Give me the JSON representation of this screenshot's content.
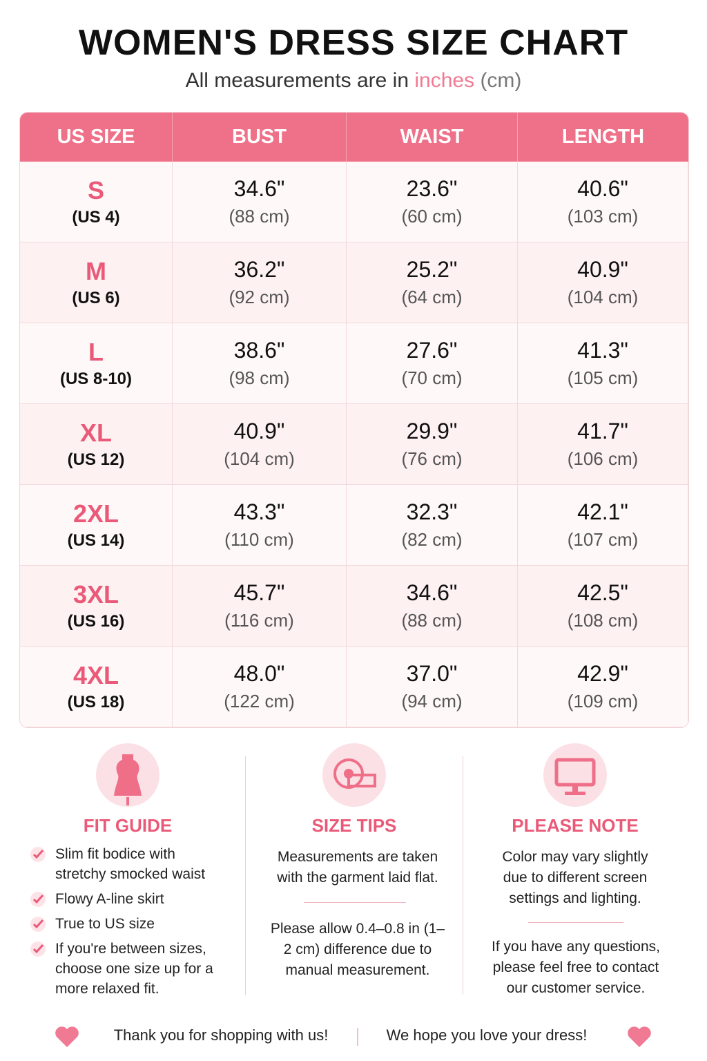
{
  "header": {
    "title": "WOMEN'S DRESS SIZE CHART",
    "subtitle": {
      "before": "All measurements are in",
      "inches": "inches",
      "cm": "(cm)"
    }
  },
  "table": {
    "columns": [
      "US SIZE",
      "BUST",
      "WAIST",
      "LENGTH"
    ],
    "rows": [
      {
        "size": "S",
        "us": "(US 4)",
        "bust": [
          "34.6\"",
          "(88 cm)"
        ],
        "waist": [
          "23.6\"",
          "(60 cm)"
        ],
        "length": [
          "40.6\"",
          "(103 cm)"
        ]
      },
      {
        "size": "M",
        "us": "(US 6)",
        "bust": [
          "36.2\"",
          "(92 cm)"
        ],
        "waist": [
          "25.2\"",
          "(64 cm)"
        ],
        "length": [
          "40.9\"",
          "(104 cm)"
        ]
      },
      {
        "size": "L",
        "us": "(US 8-10)",
        "bust": [
          "38.6\"",
          "(98 cm)"
        ],
        "waist": [
          "27.6\"",
          "(70 cm)"
        ],
        "length": [
          "41.3\"",
          "(105 cm)"
        ]
      },
      {
        "size": "XL",
        "us": "(US 12)",
        "bust": [
          "40.9\"",
          "(104 cm)"
        ],
        "waist": [
          "29.9\"",
          "(76 cm)"
        ],
        "length": [
          "41.7\"",
          "(106 cm)"
        ]
      },
      {
        "size": "2XL",
        "us": "(US 14)",
        "bust": [
          "43.3\"",
          "(110 cm)"
        ],
        "waist": [
          "32.3\"",
          "(82 cm)"
        ],
        "length": [
          "42.1\"",
          "(107 cm)"
        ]
      },
      {
        "size": "3XL",
        "us": "(US 16)",
        "bust": [
          "45.7\"",
          "(116 cm)"
        ],
        "waist": [
          "34.6\"",
          "(88 cm)"
        ],
        "length": [
          "42.5\"",
          "(108 cm)"
        ]
      },
      {
        "size": "4XL",
        "us": "(US 18)",
        "bust": [
          "48.0\"",
          "(122 cm)"
        ],
        "waist": [
          "37.0\"",
          "(94 cm)"
        ],
        "length": [
          "42.9\"",
          "(109 cm)"
        ]
      }
    ]
  },
  "fit_guide": {
    "title": "FIT GUIDE",
    "items": [
      "Slim fit bodice with stretchy smocked waist",
      "Flowy A-line skirt",
      "True to US size",
      "If you're between sizes, choose one size up for a more relaxed fit."
    ]
  },
  "size_tips": {
    "title": "SIZE TIPS",
    "paragraphs": [
      "Measurements are taken with the garment laid flat.",
      "Please allow 0.4–0.8 in (1–2 cm) difference due to manual measurement."
    ]
  },
  "please_note": {
    "title": "PLEASE NOTE",
    "paragraphs": [
      "Color may vary slightly due to different screen settings and lighting.",
      "If you have any questions, please feel free to contact our customer service."
    ]
  },
  "footer": {
    "left": "Thank you for shopping with us!",
    "right": "We hope you love your dress!"
  }
}
